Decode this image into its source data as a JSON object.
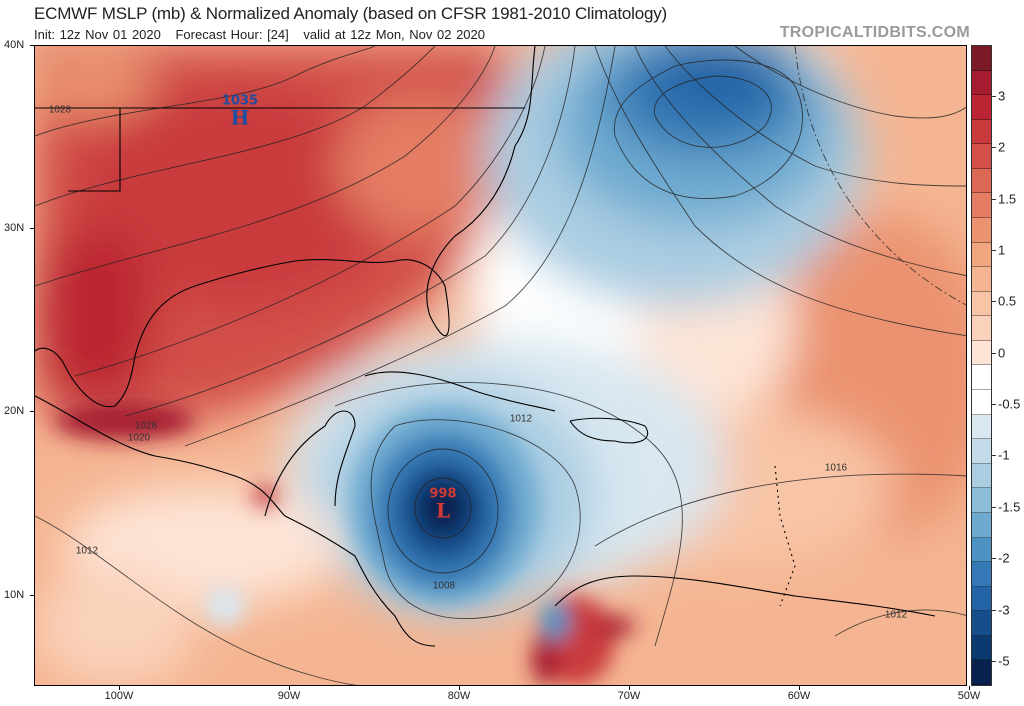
{
  "header": {
    "title": "ECMWF MSLP (mb) & Normalized Anomaly (based on CFSR 1981-2010 Climatology)",
    "init": "Init: 12z Nov 01 2020",
    "forecast_hour": "Forecast Hour: [24]",
    "valid": "valid at 12z Mon, Nov 02 2020",
    "watermark": "TROPICALTIDBITS.COM"
  },
  "axes": {
    "lat_labels": [
      {
        "lat": 40,
        "label": "40N"
      },
      {
        "lat": 30,
        "label": "30N"
      },
      {
        "lat": 20,
        "label": "20N"
      },
      {
        "lat": 10,
        "label": "10N"
      }
    ],
    "lon_labels": [
      {
        "lon": 100,
        "label": "100W"
      },
      {
        "lon": 90,
        "label": "90W"
      },
      {
        "lon": 80,
        "label": "80W"
      },
      {
        "lon": 70,
        "label": "70W"
      },
      {
        "lon": 60,
        "label": "60W"
      },
      {
        "lon": 50,
        "label": "50W"
      }
    ]
  },
  "colorbar": {
    "labels": [
      "3",
      "2",
      "1.5",
      "1",
      "0.5",
      "0",
      "-0.5",
      "-1",
      "-1.5",
      "-2",
      "-3",
      "-5"
    ],
    "colors": [
      "#7b1a26",
      "#a51c30",
      "#bb2533",
      "#c93a3c",
      "#d24f4a",
      "#dd6755",
      "#e47d63",
      "#eb9370",
      "#f2a67f",
      "#f5b592",
      "#f8c4a6",
      "#fad2bb",
      "#fde4d6",
      "#ffffff",
      "#ffffff",
      "#d8e7f0",
      "#c3dbe9",
      "#aacde2",
      "#8cbdd9",
      "#6eaad0",
      "#4c93c4",
      "#3479b5",
      "#2463a5",
      "#164e8c",
      "#0b3a70",
      "#08214f"
    ]
  },
  "pressure_centers": [
    {
      "type": "H",
      "value": "1035",
      "color": "#1f4fa0"
    },
    {
      "type": "L",
      "value": "998",
      "color": "#d43a34"
    }
  ],
  "contour_labels": [
    "1028",
    "1028",
    "1020",
    "1012",
    "1008",
    "1016",
    "1012",
    "1012"
  ]
}
